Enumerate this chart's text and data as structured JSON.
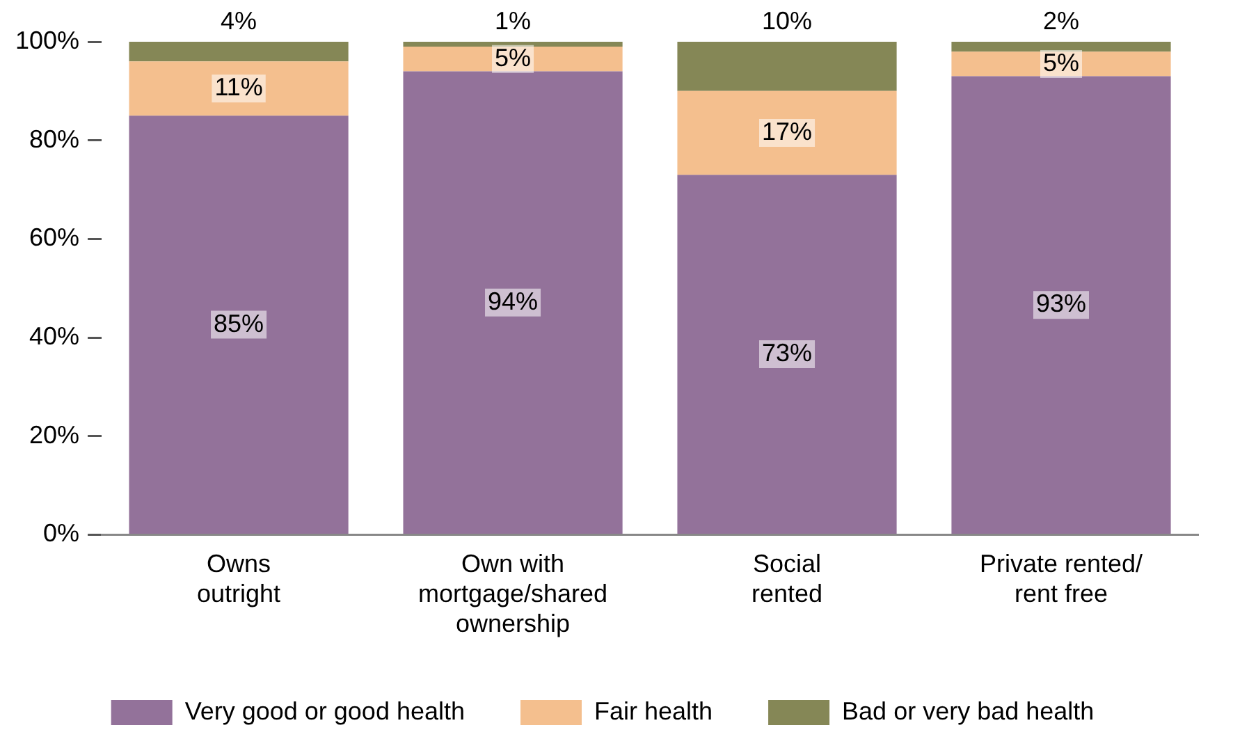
{
  "chart_data": {
    "type": "bar",
    "stacked": true,
    "categories": [
      "Owns\noutright",
      "Own with\nmortgage/shared\nownership",
      "Social\nrented",
      "Private rented/\nrent free"
    ],
    "series": [
      {
        "name": "Very good or good health",
        "color": "#93729a",
        "values": [
          85,
          94,
          73,
          93
        ],
        "value_labels": [
          "85%",
          "94%",
          "73%",
          "93%"
        ]
      },
      {
        "name": "Fair health",
        "color": "#f4bf8e",
        "values": [
          11,
          5,
          17,
          5
        ],
        "value_labels": [
          "11%",
          "5%",
          "17%",
          "5%"
        ]
      },
      {
        "name": "Bad or very bad health",
        "color": "#858756",
        "values": [
          4,
          1,
          10,
          2
        ],
        "value_labels": [
          "4%",
          "1%",
          "10%",
          "2%"
        ]
      }
    ],
    "ylim": [
      0,
      100
    ],
    "yticks": [
      {
        "value": 0,
        "label": "0%"
      },
      {
        "value": 20,
        "label": "20%"
      },
      {
        "value": 40,
        "label": "40%"
      },
      {
        "value": 60,
        "label": "60%"
      },
      {
        "value": 80,
        "label": "80%"
      },
      {
        "value": 100,
        "label": "100%"
      }
    ],
    "grid": false,
    "legend": "bottom"
  }
}
